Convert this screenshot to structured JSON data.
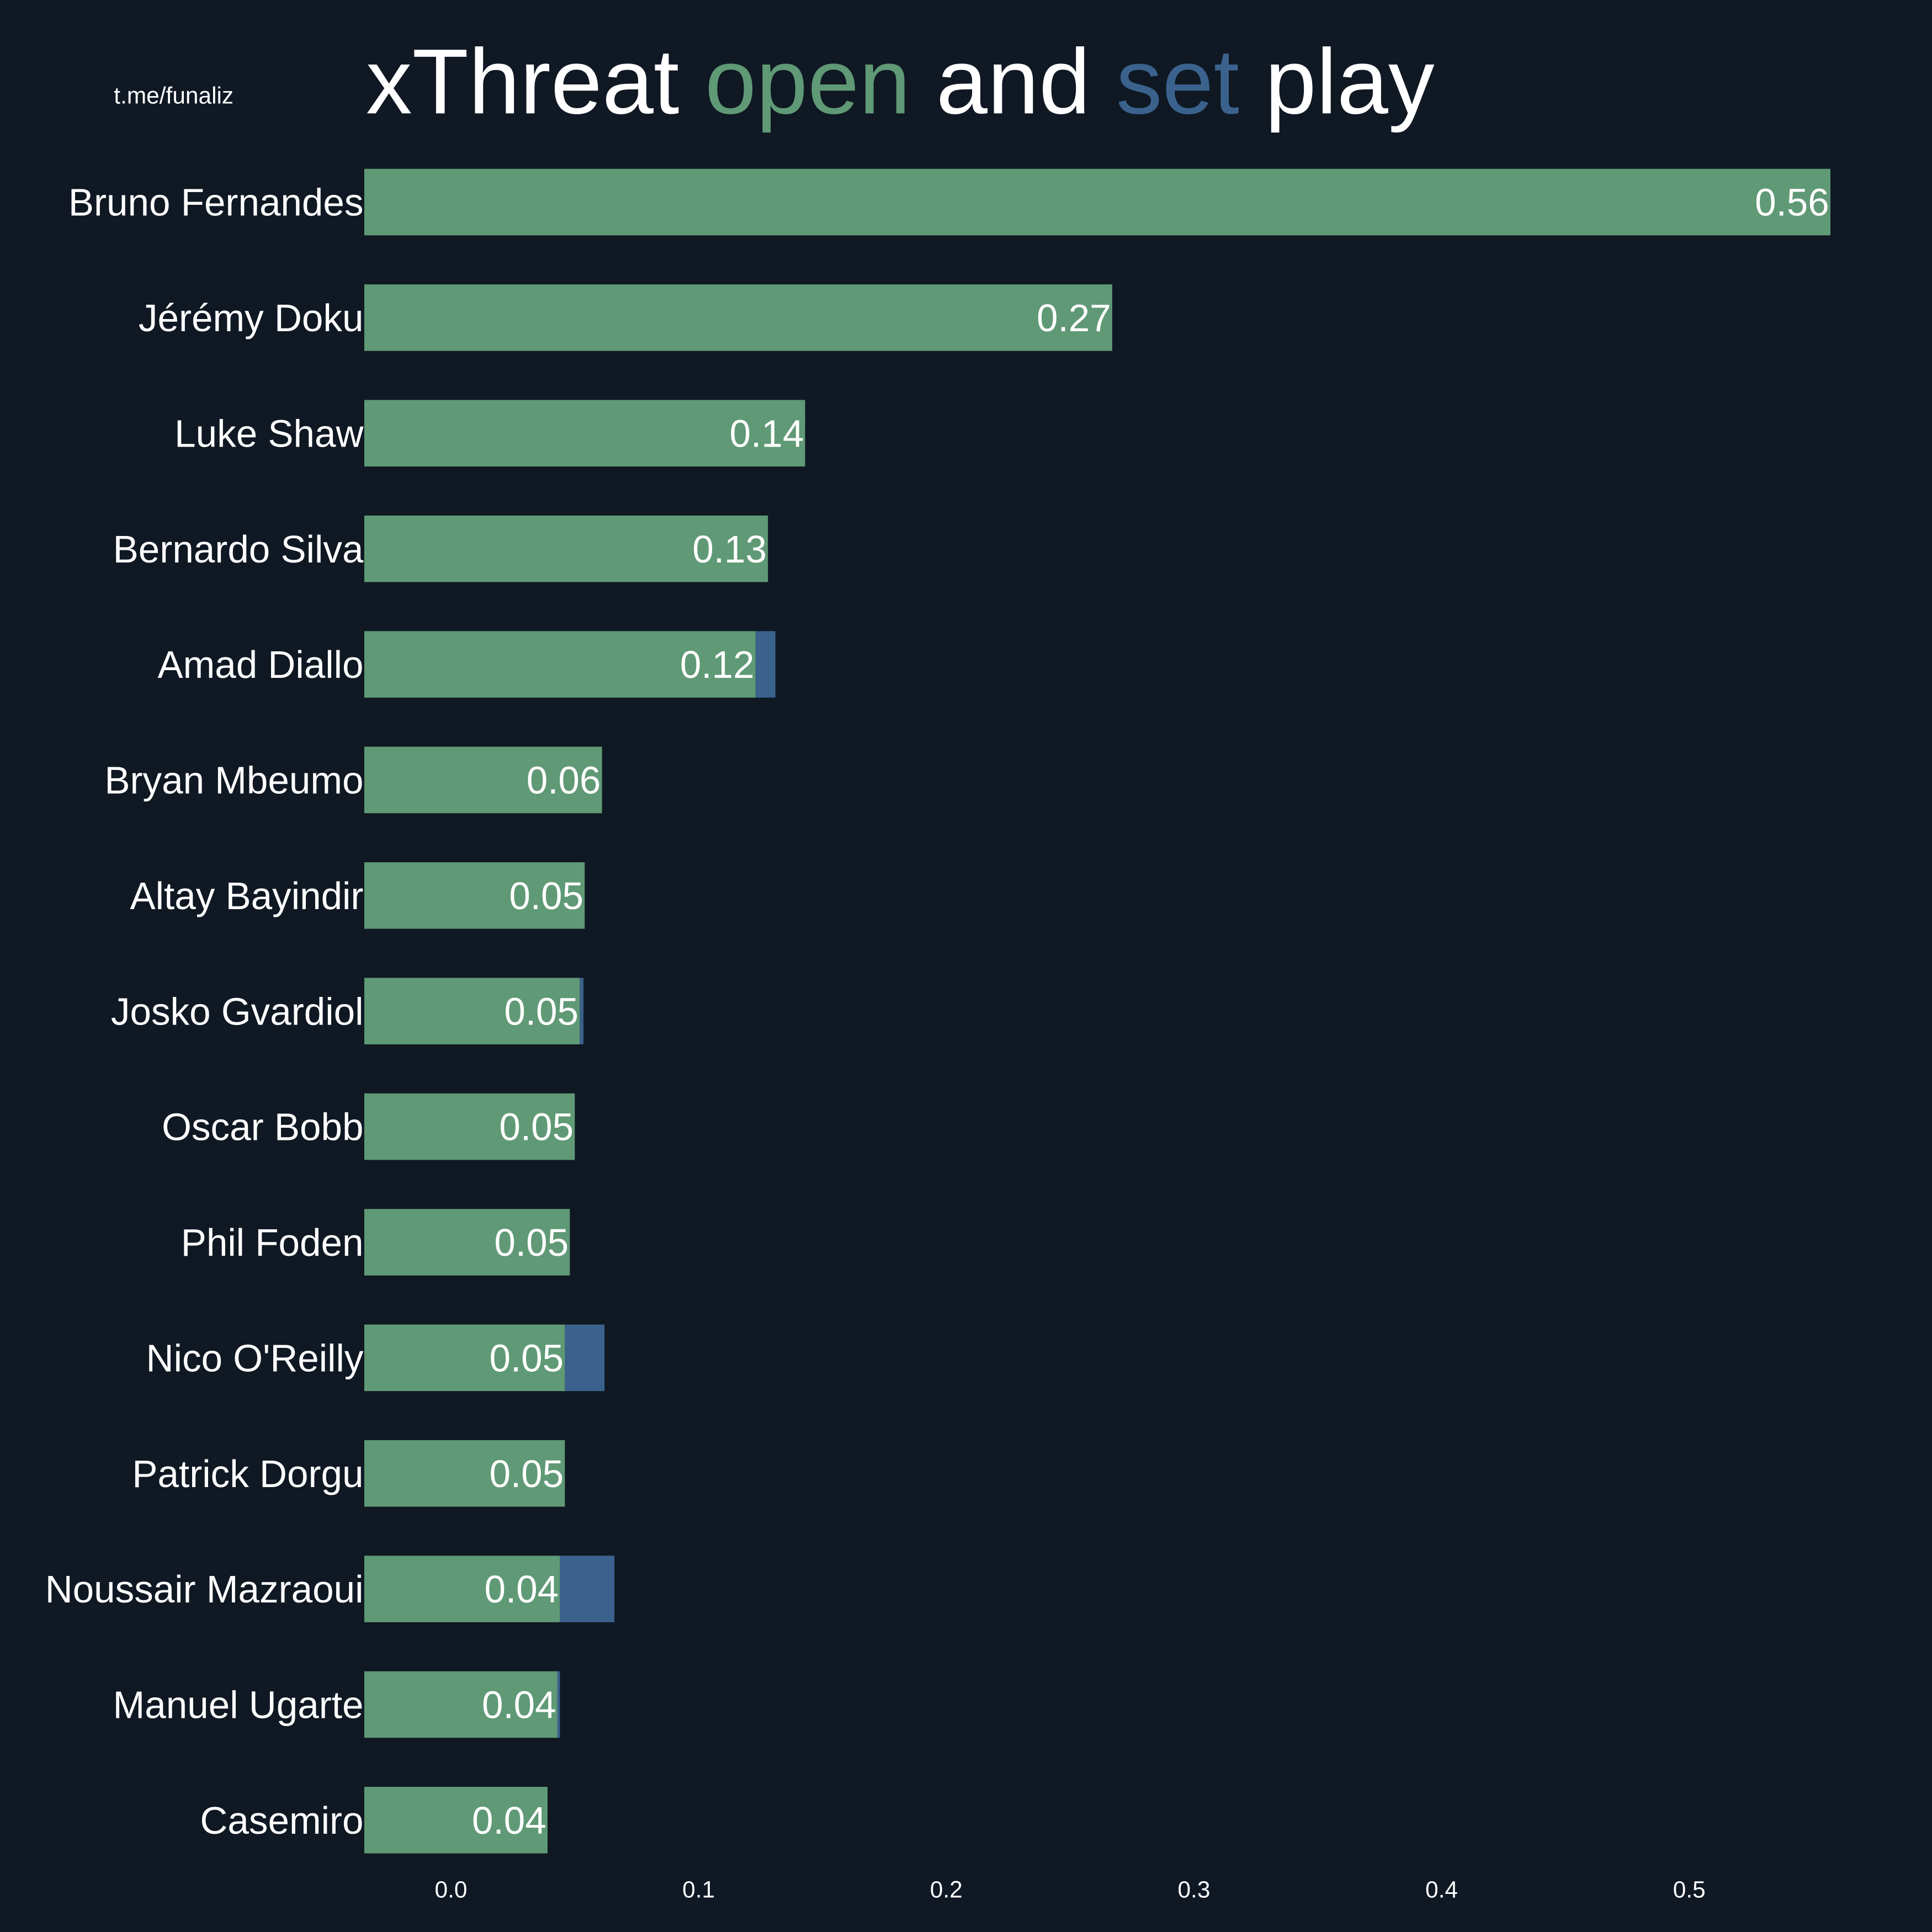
{
  "chart_data": {
    "type": "bar",
    "orientation": "horizontal",
    "stacked": true,
    "title": [
      "xThreat ",
      "open",
      " and ",
      "set",
      " play"
    ],
    "watermark": "t.me/funaliz",
    "categories": [
      "Bruno Fernandes",
      "Jérémy Doku",
      "Luke Shaw",
      "Bernardo Silva",
      "Amad Diallo",
      "Bryan Mbeumo",
      "Altay Bayindir",
      "Josko Gvardiol",
      "Oscar Bobb",
      "Phil Foden",
      "Nico O'Reilly",
      "Patrick Dorgu",
      "Noussair Mazraoui",
      "Manuel Ugarte",
      "Casemiro"
    ],
    "series": [
      {
        "name": "open",
        "color": "#5f9975",
        "values": [
          0.557,
          0.267,
          0.143,
          0.128,
          0.123,
          0.061,
          0.054,
          0.052,
          0.05,
          0.048,
          0.046,
          0.046,
          0.044,
          0.043,
          0.039
        ],
        "value_labels": [
          "0.56",
          "0.27",
          "0.14",
          "0.13",
          "0.12",
          "0.06",
          "0.05",
          "0.05",
          "0.05",
          "0.05",
          "0.05",
          "0.05",
          "0.04",
          "0.04",
          "0.04"
        ]
      },
      {
        "name": "set",
        "color": "#3a628c",
        "values": [
          0,
          0,
          0,
          0,
          0.008,
          0,
          0,
          0.0015,
          0,
          0,
          0.016,
          0,
          0.022,
          0.001,
          0
        ]
      }
    ],
    "xlim": [
      -0.035,
      0.598
    ],
    "xticks": [
      {
        "value": 0,
        "label": "0.0"
      },
      0.1,
      0.2,
      0.3,
      0.4,
      0.5
    ],
    "grid": false
  }
}
